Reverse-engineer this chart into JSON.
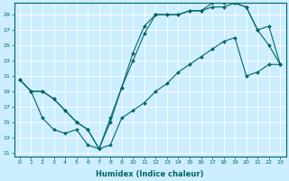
{
  "xlabel": "Humidex (Indice chaleur)",
  "bg_color": "#cceeff",
  "line_color": "#006666",
  "grid_color": "#ffffff",
  "xlim": [
    -0.5,
    23.5
  ],
  "ylim": [
    10.5,
    30.5
  ],
  "yticks": [
    11,
    13,
    15,
    17,
    19,
    21,
    23,
    25,
    27,
    29
  ],
  "xticks": [
    0,
    1,
    2,
    3,
    4,
    5,
    6,
    7,
    8,
    9,
    10,
    11,
    12,
    13,
    14,
    15,
    16,
    17,
    18,
    19,
    20,
    21,
    22,
    23
  ],
  "line1_x": [
    0,
    1,
    2,
    3,
    4,
    5,
    6,
    7,
    8,
    9,
    10,
    11,
    12,
    13,
    14,
    15,
    16,
    17,
    18,
    19,
    20,
    21,
    22,
    23
  ],
  "line1_y": [
    20.5,
    19.0,
    19.0,
    18.0,
    16.5,
    15.0,
    14.0,
    11.5,
    15.0,
    19.5,
    23.0,
    26.5,
    29.0,
    29.0,
    29.0,
    29.5,
    29.5,
    30.0,
    30.0,
    30.5,
    30.0,
    27.0,
    25.0,
    22.5
  ],
  "line2_x": [
    0,
    1,
    2,
    3,
    4,
    5,
    6,
    7,
    8,
    9,
    10,
    11,
    12,
    13,
    14,
    15,
    16,
    17,
    18,
    19,
    20,
    21,
    22,
    23
  ],
  "line2_y": [
    20.5,
    19.0,
    19.0,
    18.0,
    16.5,
    15.0,
    14.0,
    11.5,
    15.5,
    19.5,
    24.0,
    27.5,
    29.0,
    29.0,
    29.0,
    29.5,
    29.5,
    30.5,
    30.5,
    30.5,
    30.0,
    27.0,
    27.5,
    22.5
  ],
  "line3_x": [
    0,
    1,
    2,
    3,
    4,
    5,
    6,
    7,
    8,
    9,
    10,
    11,
    12,
    13,
    14,
    15,
    16,
    17,
    18,
    19,
    20,
    21,
    22,
    23
  ],
  "line3_y": [
    20.5,
    19.0,
    15.5,
    14.0,
    13.5,
    14.0,
    12.0,
    11.5,
    12.0,
    15.5,
    16.5,
    17.5,
    19.0,
    20.0,
    21.5,
    22.5,
    23.5,
    24.5,
    25.5,
    26.0,
    21.0,
    21.5,
    22.5,
    22.5
  ]
}
